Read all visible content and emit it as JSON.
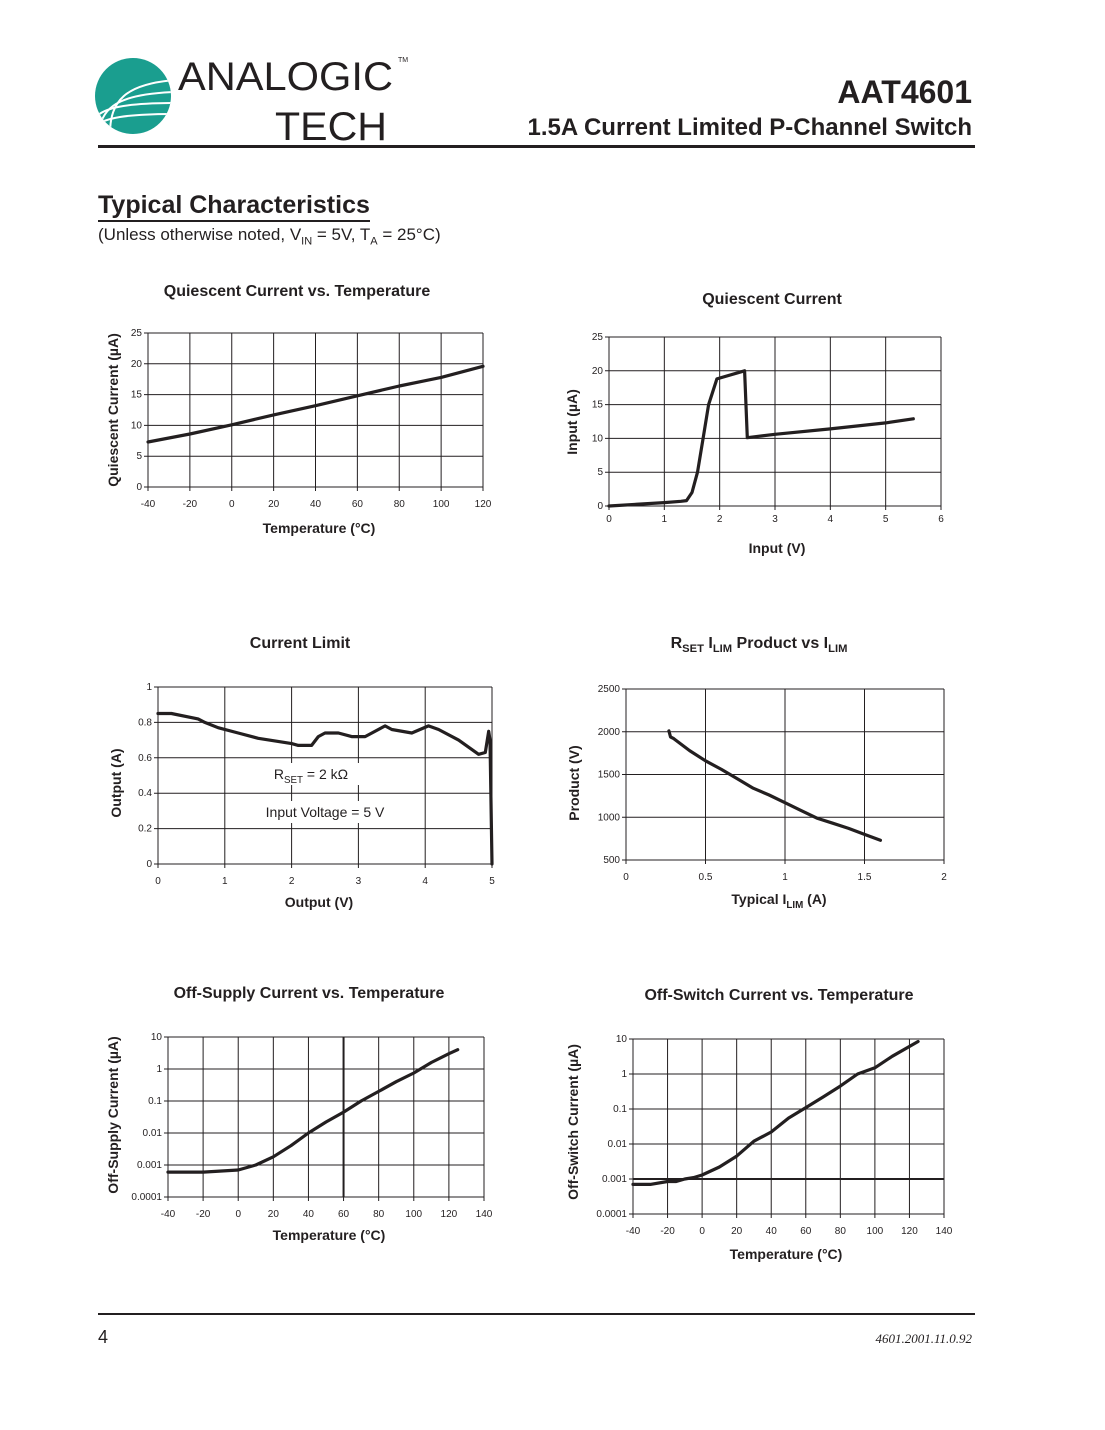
{
  "header": {
    "logo_text": "ANALOGIC TECH",
    "logo_line1": "ANALOGIC",
    "logo_line2": "TECH",
    "logo_tm": "TM",
    "brand_color": "#1a9e8f",
    "part_number": "AAT4601",
    "part_description": "1.5A Current Limited P-Channel Switch"
  },
  "section": {
    "title": "Typical Characteristics",
    "conditions_prefix": "(Unless otherwise noted, V",
    "conditions_sub1": "IN",
    "conditions_mid": " = 5V, T",
    "conditions_sub2": "A",
    "conditions_suffix": " = 25°C)"
  },
  "footer": {
    "page_number": "4",
    "doc_id": "4601.2001.11.0.92"
  },
  "chart_data": [
    {
      "type": "line",
      "title": [
        {
          "t": "Quiescent Current vs. Temperature"
        }
      ],
      "xlabel": [
        {
          "t": "Temperature (°C)"
        }
      ],
      "ylabel": "Quiescent Current (µA)",
      "xlim": [
        -40,
        120
      ],
      "ylim": [
        0,
        25
      ],
      "yscale": "linear",
      "grid": true,
      "xticks": [
        "-40",
        "-20",
        "0",
        "20",
        "40",
        "60",
        "80",
        "100",
        "120"
      ],
      "yticks": [
        "0",
        "5",
        "10",
        "15",
        "20",
        "25"
      ],
      "x": [
        -40,
        -20,
        0,
        20,
        40,
        60,
        80,
        100,
        120
      ],
      "y": [
        7.3,
        8.6,
        10.1,
        11.7,
        13.2,
        14.8,
        16.4,
        17.8,
        19.6
      ]
    },
    {
      "type": "line",
      "title": [
        {
          "t": "Quiescent Current"
        }
      ],
      "xlabel": [
        {
          "t": "Input (V)"
        }
      ],
      "ylabel": "Input (µA)",
      "xlim": [
        0,
        6
      ],
      "ylim": [
        0,
        25
      ],
      "yscale": "linear",
      "grid": true,
      "xticks": [
        "0",
        "1",
        "2",
        "3",
        "4",
        "5",
        "6"
      ],
      "yticks": [
        "0",
        "5",
        "10",
        "15",
        "20",
        "25"
      ],
      "x": [
        0,
        1,
        1.3,
        1.4,
        1.5,
        1.6,
        1.7,
        1.8,
        1.95,
        2.45,
        2.5,
        3,
        4,
        5,
        5.5
      ],
      "y": [
        0,
        0.5,
        0.7,
        0.8,
        2,
        5,
        10,
        15,
        18.8,
        20,
        10.1,
        10.6,
        11.4,
        12.3,
        12.9
      ]
    },
    {
      "type": "line",
      "title": [
        {
          "t": "Current Limit"
        }
      ],
      "xlabel": [
        {
          "t": "Output (V)"
        }
      ],
      "ylabel": "Output (A)",
      "xlim": [
        0,
        5
      ],
      "ylim": [
        0,
        1
      ],
      "yscale": "linear",
      "grid": true,
      "xticks": [
        "0",
        "1",
        "2",
        "3",
        "4",
        "5"
      ],
      "yticks": [
        "0",
        "0.2",
        "0.4",
        "0.6",
        "0.8",
        "1"
      ],
      "annotations": [
        [
          {
            "t": "R"
          },
          {
            "t": "SET",
            "sub": true
          },
          {
            "t": " = 2 kΩ"
          }
        ],
        [
          {
            "t": "Input  Voltage = 5 V"
          }
        ]
      ],
      "x": [
        0,
        0.2,
        0.6,
        0.7,
        0.9,
        1.2,
        1.5,
        2,
        2.1,
        2.3,
        2.4,
        2.5,
        2.7,
        2.9,
        3.1,
        3.4,
        3.5,
        3.8,
        4.05,
        4.2,
        4.5,
        4.8,
        4.9,
        4.95,
        4.97,
        5
      ],
      "y": [
        0.85,
        0.85,
        0.82,
        0.8,
        0.77,
        0.74,
        0.71,
        0.68,
        0.67,
        0.67,
        0.72,
        0.74,
        0.74,
        0.72,
        0.72,
        0.78,
        0.76,
        0.74,
        0.78,
        0.76,
        0.7,
        0.62,
        0.63,
        0.75,
        0.7,
        0
      ]
    },
    {
      "type": "line",
      "title": [
        {
          "t": "R"
        },
        {
          "t": "SET",
          "sub": true
        },
        {
          "t": " I"
        },
        {
          "t": "LIM",
          "sub": true
        },
        {
          "t": " Product vs I"
        },
        {
          "t": "LIM",
          "sub": true
        }
      ],
      "xlabel": [
        {
          "t": "Typical I"
        },
        {
          "t": "LIM",
          "sub": true
        },
        {
          "t": " (A)"
        }
      ],
      "ylabel": "Product (V)",
      "xlim": [
        0,
        2
      ],
      "ylim": [
        500,
        2500
      ],
      "yscale": "linear",
      "grid": true,
      "xticks": [
        "0",
        "0.5",
        "1",
        "1.5",
        "2"
      ],
      "yticks": [
        "500",
        "1000",
        "1500",
        "2000",
        "2500"
      ],
      "x": [
        0.27,
        0.28,
        0.3,
        0.4,
        0.5,
        0.6,
        0.7,
        0.8,
        0.9,
        1,
        1.1,
        1.2,
        1.3,
        1.4,
        1.5,
        1.6
      ],
      "y": [
        2010,
        1940,
        1920,
        1780,
        1660,
        1560,
        1450,
        1340,
        1260,
        1170,
        1080,
        990,
        930,
        870,
        800,
        730
      ]
    },
    {
      "type": "line",
      "title": [
        {
          "t": "Off-Supply Current vs. Temperature"
        }
      ],
      "xlabel": [
        {
          "t": "Temperature (°C)"
        }
      ],
      "ylabel": "Off-Supply Current (µA)",
      "xlim": [
        -40,
        140
      ],
      "ylim": [
        0.0001,
        10
      ],
      "yscale": "log",
      "grid": true,
      "xticks": [
        "-40",
        "-20",
        "0",
        "20",
        "40",
        "60",
        "80",
        "100",
        "120",
        "140"
      ],
      "yticks": [
        "0.0001",
        "0.001",
        "0.01",
        "0.1",
        "1",
        "10"
      ],
      "reference_line": {
        "axis": "x",
        "value": 60
      },
      "x": [
        -40,
        -20,
        0,
        10,
        20,
        30,
        40,
        50,
        60,
        70,
        80,
        90,
        100,
        110,
        120,
        125
      ],
      "y": [
        0.0006,
        0.0006,
        0.0007,
        0.001,
        0.0018,
        0.004,
        0.01,
        0.022,
        0.045,
        0.1,
        0.2,
        0.4,
        0.75,
        1.6,
        3,
        4
      ]
    },
    {
      "type": "line",
      "title": [
        {
          "t": "Off-Switch Current vs. Temperature"
        }
      ],
      "xlabel": [
        {
          "t": "Temperature (°C)"
        }
      ],
      "ylabel": "Off-Switch Current (µA)",
      "xlim": [
        -40,
        140
      ],
      "ylim": [
        0.0001,
        10
      ],
      "yscale": "log",
      "grid": true,
      "xticks": [
        "-40",
        "-20",
        "0",
        "20",
        "40",
        "60",
        "80",
        "100",
        "120",
        "140"
      ],
      "yticks": [
        "0.0001",
        "0.001",
        "0.01",
        "0.1",
        "1",
        "10"
      ],
      "reference_line": {
        "axis": "y",
        "value": 0.001
      },
      "x": [
        -40,
        -30,
        -20,
        -15,
        -10,
        -5,
        0,
        10,
        20,
        30,
        40,
        50,
        60,
        70,
        80,
        90,
        100,
        110,
        125
      ],
      "y": [
        0.0007,
        0.0007,
        0.00085,
        0.00085,
        0.001,
        0.0011,
        0.0013,
        0.0022,
        0.0045,
        0.012,
        0.022,
        0.055,
        0.11,
        0.22,
        0.45,
        1,
        1.5,
        3.2,
        8.5
      ]
    }
  ]
}
